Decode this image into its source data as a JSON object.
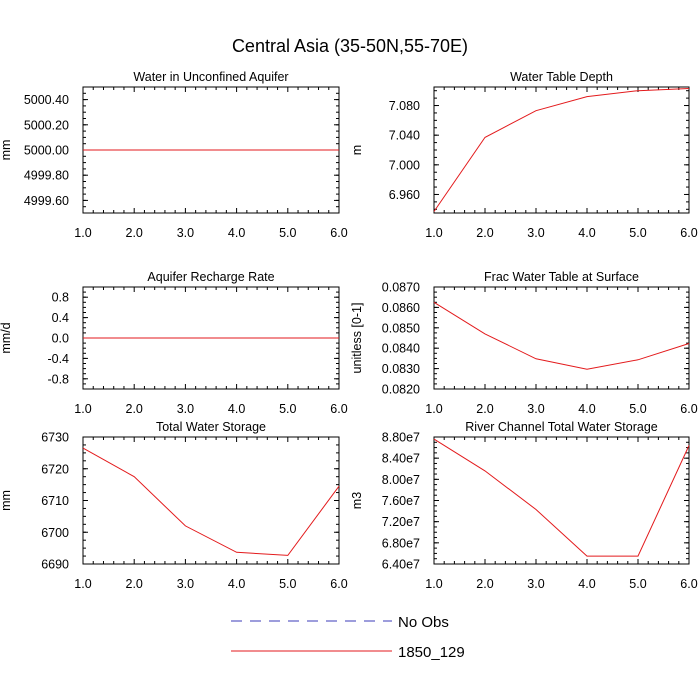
{
  "figure": {
    "title": "Central Asia (35-50N,55-70E)"
  },
  "legend": [
    {
      "label": "No Obs",
      "color": "#3b3bb8",
      "style": "dashed"
    },
    {
      "label": "1850_129",
      "color": "#e31a1c",
      "style": "solid"
    }
  ],
  "chart_data": [
    {
      "type": "line",
      "title": "Water in Unconfined Aquifer",
      "ylabel": "mm",
      "x": [
        1,
        2,
        3,
        4,
        5,
        6
      ],
      "xlim": [
        1,
        6
      ],
      "xticks": [
        "1.0",
        "2.0",
        "3.0",
        "4.0",
        "5.0",
        "6.0"
      ],
      "ylim": [
        4999.5,
        5000.5
      ],
      "yticks": [
        4999.6,
        4999.8,
        5000.0,
        5000.2,
        5000.4
      ],
      "yticklabels": [
        "4999.60",
        "4999.80",
        "5000.00",
        "5000.20",
        "5000.40"
      ],
      "series": [
        {
          "name": "1850_129",
          "color": "#e31a1c",
          "values": [
            5000.0,
            5000.0,
            5000.0,
            5000.0,
            5000.0,
            5000.0
          ]
        }
      ]
    },
    {
      "type": "line",
      "title": "Water Table Depth",
      "ylabel": "m",
      "x": [
        1,
        2,
        3,
        4,
        5,
        6
      ],
      "xlim": [
        1,
        6
      ],
      "xticks": [
        "1.0",
        "2.0",
        "3.0",
        "4.0",
        "5.0",
        "6.0"
      ],
      "ylim": [
        6.935,
        7.105
      ],
      "yticks": [
        6.96,
        7.0,
        7.04,
        7.08
      ],
      "yticklabels": [
        "6.960",
        "7.000",
        "7.040",
        "7.080"
      ],
      "series": [
        {
          "name": "1850_129",
          "color": "#e31a1c",
          "values": [
            6.937,
            7.037,
            7.073,
            7.092,
            7.1,
            7.103
          ]
        }
      ]
    },
    {
      "type": "line",
      "title": "Aquifer Recharge Rate",
      "ylabel": "mm/d",
      "x": [
        1,
        2,
        3,
        4,
        5,
        6
      ],
      "xlim": [
        1,
        6
      ],
      "xticks": [
        "1.0",
        "2.0",
        "3.0",
        "4.0",
        "5.0",
        "6.0"
      ],
      "ylim": [
        -1.0,
        1.0
      ],
      "yticks": [
        -0.8,
        -0.4,
        0.0,
        0.4,
        0.8
      ],
      "yticklabels": [
        "-0.8",
        "-0.4",
        "0.0",
        "0.4",
        "0.8"
      ],
      "series": [
        {
          "name": "1850_129",
          "color": "#e31a1c",
          "values": [
            0,
            0,
            0,
            0,
            0,
            0
          ]
        }
      ]
    },
    {
      "type": "line",
      "title": "Frac Water Table at Surface",
      "ylabel": "unitless [0-1]",
      "x": [
        1,
        2,
        3,
        4,
        5,
        6
      ],
      "xlim": [
        1,
        6
      ],
      "xticks": [
        "1.0",
        "2.0",
        "3.0",
        "4.0",
        "5.0",
        "6.0"
      ],
      "ylim": [
        0.082,
        0.087
      ],
      "yticks": [
        0.082,
        0.083,
        0.084,
        0.085,
        0.086,
        0.087
      ],
      "yticklabels": [
        "0.0820",
        "0.0830",
        "0.0840",
        "0.0850",
        "0.0860",
        "0.0870"
      ],
      "series": [
        {
          "name": "1850_129",
          "color": "#e31a1c",
          "values": [
            0.08625,
            0.0847,
            0.08348,
            0.08297,
            0.08343,
            0.08423
          ]
        }
      ]
    },
    {
      "type": "line",
      "title": "Total Water Storage",
      "ylabel": "mm",
      "x": [
        1,
        2,
        3,
        4,
        5,
        6
      ],
      "xlim": [
        1,
        6
      ],
      "xticks": [
        "1.0",
        "2.0",
        "3.0",
        "4.0",
        "5.0",
        "6.0"
      ],
      "ylim": [
        6690,
        6730
      ],
      "yticks": [
        6690,
        6700,
        6710,
        6720,
        6730
      ],
      "yticklabels": [
        "6690",
        "6700",
        "6710",
        "6720",
        "6730"
      ],
      "series": [
        {
          "name": "1850_129",
          "color": "#e31a1c",
          "values": [
            6726.5,
            6717.5,
            6702.0,
            6693.7,
            6692.7,
            6714.5
          ]
        }
      ]
    },
    {
      "type": "line",
      "title": "River Channel Total Water Storage",
      "ylabel": "m3",
      "x": [
        1,
        2,
        3,
        4,
        5,
        6
      ],
      "xlim": [
        1,
        6
      ],
      "xticks": [
        "1.0",
        "2.0",
        "3.0",
        "4.0",
        "5.0",
        "6.0"
      ],
      "ylim": [
        64000000,
        88000000
      ],
      "yticks": [
        64000000,
        68000000,
        72000000,
        76000000,
        80000000,
        84000000,
        88000000
      ],
      "yticklabels": [
        "6.40e7",
        "6.80e7",
        "7.20e7",
        "7.60e7",
        "8.00e7",
        "8.40e7",
        "8.80e7"
      ],
      "series": [
        {
          "name": "1850_129",
          "color": "#e31a1c",
          "values": [
            87600000,
            81600000,
            74300000,
            65500000,
            65500000,
            86400000
          ]
        }
      ]
    }
  ]
}
